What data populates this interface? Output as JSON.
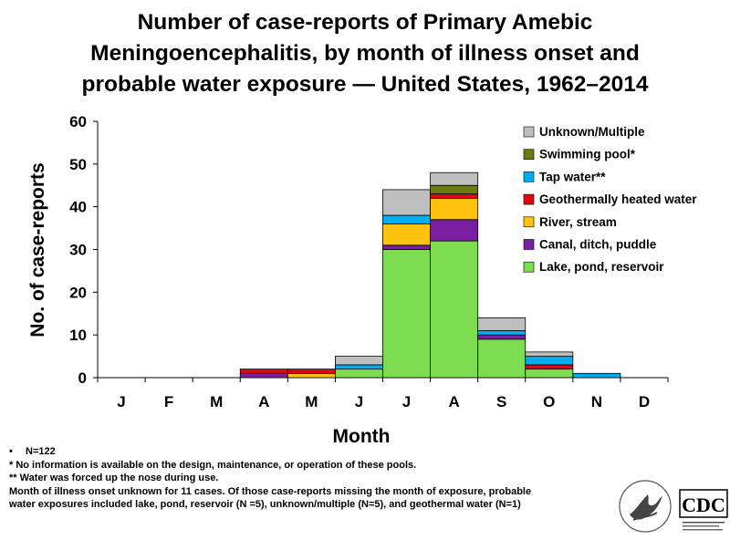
{
  "title": {
    "line1": "Number of case-reports of Primary Amebic",
    "line2": "Meningoencephalitis, by month of illness onset and",
    "line3": "probable water exposure — United States, 1962–2014"
  },
  "chart_data": {
    "type": "bar",
    "stacked": true,
    "title": "Number of case-reports of Primary Amebic Meningoencephalitis, by month of illness onset and probable water exposure — United States, 1962–2014",
    "xlabel": "Month",
    "ylabel": "No. of case-reports",
    "ylim": [
      0,
      60
    ],
    "yticks": [
      0,
      10,
      20,
      30,
      40,
      50,
      60
    ],
    "categories": [
      "J",
      "F",
      "M",
      "A",
      "M",
      "J",
      "J",
      "A",
      "S",
      "O",
      "N",
      "D"
    ],
    "legend_position": "top-right",
    "series": [
      {
        "name": "Lake, pond, reservoir",
        "color": "#7ddc50",
        "values": [
          0,
          0,
          0,
          0,
          0,
          2,
          30,
          32,
          9,
          2,
          0,
          0
        ]
      },
      {
        "name": "Canal, ditch, puddle",
        "color": "#7b1fa2",
        "values": [
          0,
          0,
          0,
          1,
          0,
          0,
          1,
          5,
          1,
          0,
          0,
          0
        ]
      },
      {
        "name": "River, stream",
        "color": "#ffc20e",
        "values": [
          0,
          0,
          0,
          0,
          1,
          0,
          5,
          5,
          0,
          0,
          0,
          0
        ]
      },
      {
        "name": "Geothermally heated water",
        "color": "#e30613",
        "values": [
          0,
          0,
          0,
          1,
          1,
          0,
          0,
          1,
          0,
          1,
          0,
          0
        ]
      },
      {
        "name": "Tap water**",
        "color": "#00aeef",
        "values": [
          0,
          0,
          0,
          0,
          0,
          1,
          2,
          0,
          1,
          2,
          1,
          0
        ]
      },
      {
        "name": "Swimming pool*",
        "color": "#6b7a12",
        "values": [
          0,
          0,
          0,
          0,
          0,
          0,
          0,
          2,
          0,
          0,
          0,
          0
        ]
      },
      {
        "name": "Unknown/Multiple",
        "color": "#bfbfbf",
        "values": [
          0,
          0,
          0,
          0,
          0,
          2,
          6,
          3,
          3,
          1,
          0,
          0
        ]
      }
    ],
    "legend_order": [
      "Unknown/Multiple",
      "Swimming pool*",
      "Tap water**",
      "Geothermally heated water",
      "River, stream",
      "Canal, ditch, puddle",
      "Lake, pond, reservoir"
    ]
  },
  "notes": {
    "n": "N=122",
    "pool_note": "*  No information is available on the design, maintenance, or operation of these pools.",
    "tap_note": "** Water was forced up the nose during use.",
    "onset_line1": "Month of illness onset unknown for 11 cases.  Of those case-reports missing the month of exposure, probable",
    "onset_line2": " water exposures included lake, pond, reservoir (N =5), unknown/multiple (N=5), and geothermal water (N=1)"
  },
  "logos": {
    "cdc_text": "CDC"
  }
}
